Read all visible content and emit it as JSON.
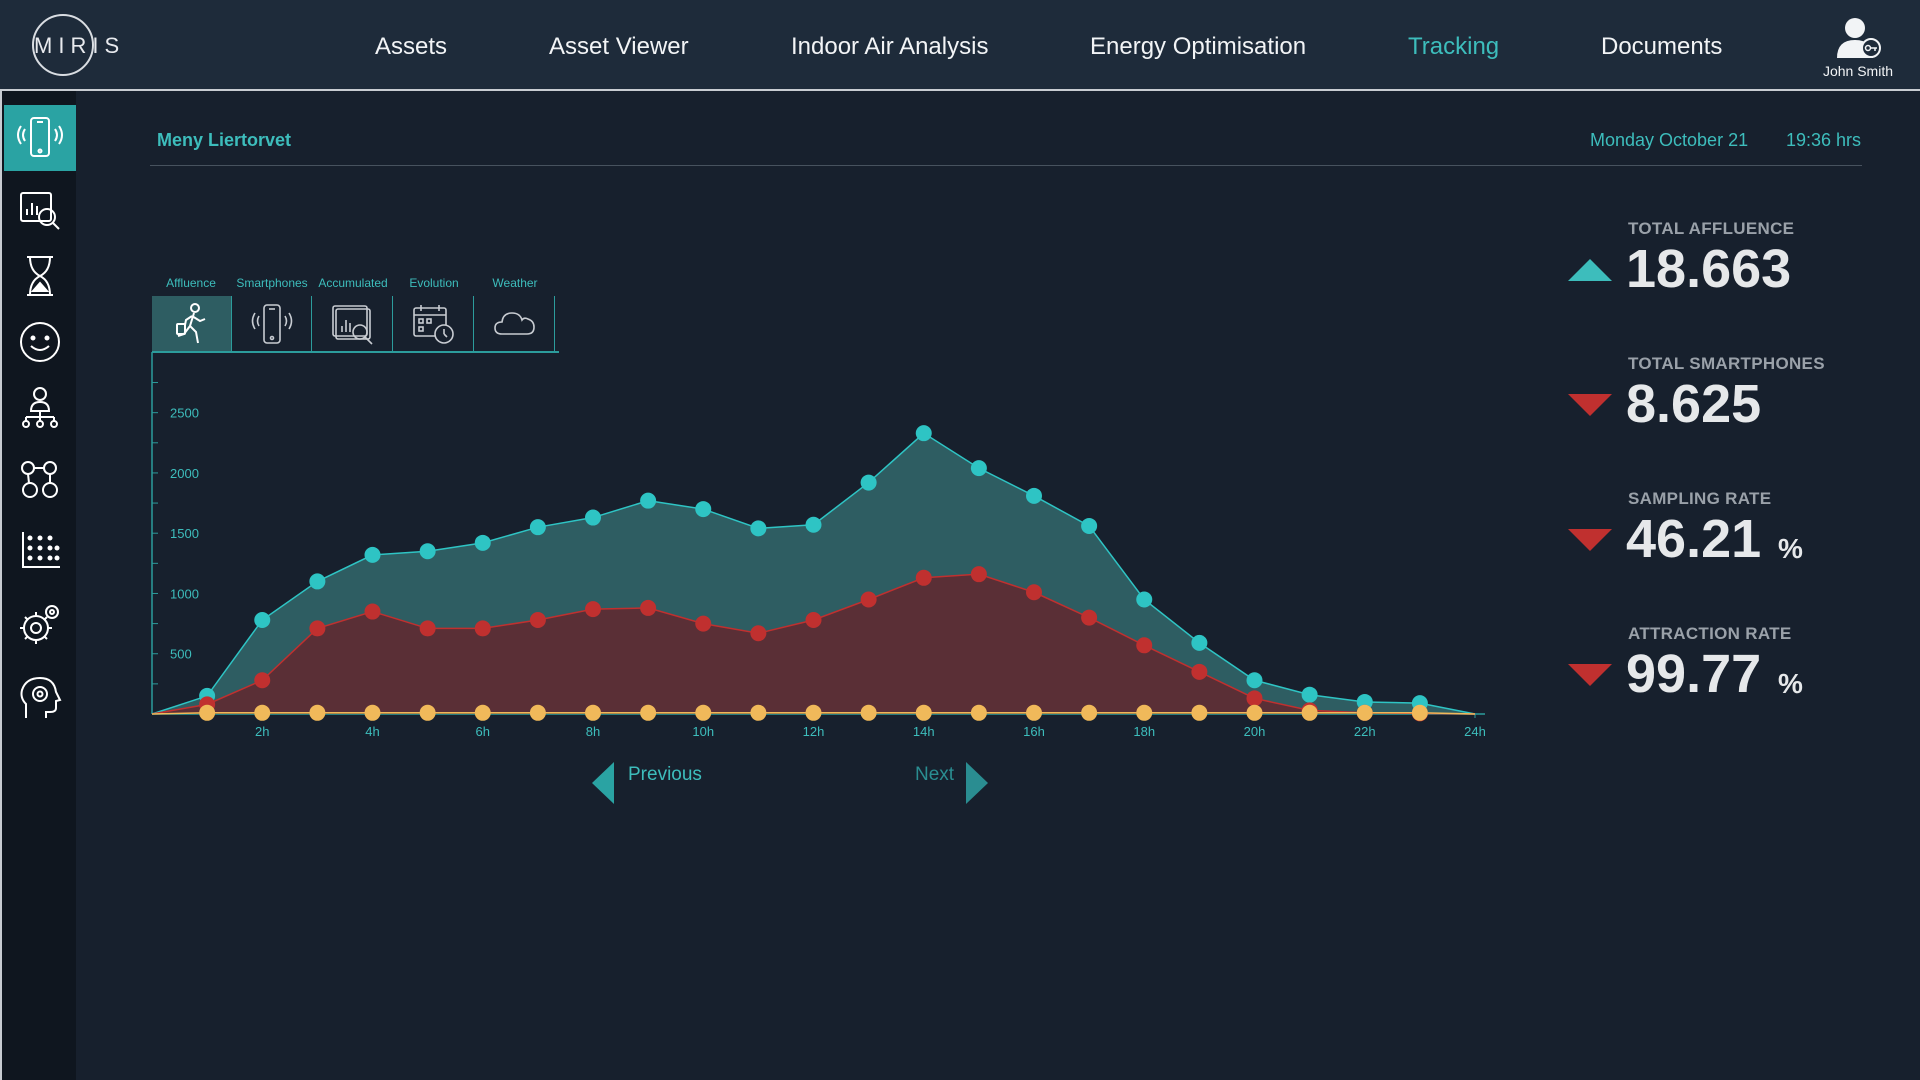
{
  "app": {
    "logo_text": "MIRIS"
  },
  "nav": {
    "items": [
      {
        "label": "Assets"
      },
      {
        "label": "Asset Viewer"
      },
      {
        "label": "Indoor Air Analysis"
      },
      {
        "label": "Energy Optimisation"
      },
      {
        "label": "Tracking"
      },
      {
        "label": "Documents"
      }
    ],
    "active": "Tracking"
  },
  "user": {
    "name": "John Smith"
  },
  "header": {
    "location": "Meny Liertorvet",
    "date": "Monday October 21",
    "time": "19:36 hrs"
  },
  "tabs": [
    {
      "label": "Affluence",
      "icon": "walking-person-icon"
    },
    {
      "label": "Smartphones",
      "icon": "smartphone-icon"
    },
    {
      "label": "Accumulated",
      "icon": "accumulated-chart-icon"
    },
    {
      "label": "Evolution",
      "icon": "calendar-clock-icon"
    },
    {
      "label": "Weather",
      "icon": "cloud-icon"
    }
  ],
  "stats": [
    {
      "label": "TOTAL AFFLUENCE",
      "value": "18.663",
      "unit": "",
      "trend": "up"
    },
    {
      "label": "TOTAL SMARTPHONES",
      "value": "8.625",
      "unit": "",
      "trend": "down"
    },
    {
      "label": "SAMPLING RATE",
      "value": "46.21",
      "unit": "%",
      "trend": "down"
    },
    {
      "label": "ATTRACTION RATE",
      "value": "99.77",
      "unit": "%",
      "trend": "down"
    }
  ],
  "pager": {
    "previous": "Previous",
    "next": "Next"
  },
  "colors": {
    "accent": "#3dbdbc",
    "down": "#c0302f",
    "orange": "#f0b95a",
    "background": "#17202d"
  },
  "chart_data": {
    "type": "area",
    "x_ticks": [
      "2h",
      "4h",
      "6h",
      "8h",
      "10h",
      "12h",
      "14h",
      "16h",
      "18h",
      "20h",
      "22h",
      "24h"
    ],
    "y_ticks": [
      500,
      1000,
      1500,
      2000,
      2500
    ],
    "xlim": [
      0,
      24
    ],
    "ylim": [
      0,
      3000
    ],
    "series": [
      {
        "color": "#2ec4c4",
        "x": [
          0,
          1,
          2,
          3,
          4,
          5,
          6,
          7,
          8,
          9,
          10,
          11,
          12,
          13,
          14,
          15,
          16,
          17,
          18,
          19,
          20,
          21,
          22,
          23,
          24
        ],
        "y": [
          0,
          150,
          780,
          1100,
          1320,
          1350,
          1420,
          1550,
          1630,
          1770,
          1700,
          1540,
          1570,
          1920,
          2330,
          2040,
          1810,
          1560,
          950,
          590,
          280,
          160,
          100,
          90,
          0
        ]
      },
      {
        "color": "#c0302f",
        "x": [
          0,
          1,
          2,
          3,
          4,
          5,
          6,
          7,
          8,
          9,
          10,
          11,
          12,
          13,
          14,
          15,
          16,
          17,
          18,
          19,
          20,
          21,
          22,
          23,
          24
        ],
        "y": [
          0,
          80,
          280,
          710,
          850,
          710,
          710,
          780,
          870,
          880,
          750,
          670,
          780,
          950,
          1130,
          1160,
          1010,
          800,
          570,
          350,
          130,
          30,
          10,
          5,
          0
        ]
      },
      {
        "color": "#f0b95a",
        "x": [
          0,
          1,
          2,
          3,
          4,
          5,
          6,
          7,
          8,
          9,
          10,
          11,
          12,
          13,
          14,
          15,
          16,
          17,
          18,
          19,
          20,
          21,
          22,
          23,
          24
        ],
        "y": [
          0,
          10,
          10,
          10,
          10,
          10,
          10,
          10,
          10,
          10,
          10,
          10,
          10,
          10,
          10,
          10,
          10,
          10,
          10,
          10,
          10,
          10,
          10,
          10,
          0
        ]
      }
    ]
  }
}
